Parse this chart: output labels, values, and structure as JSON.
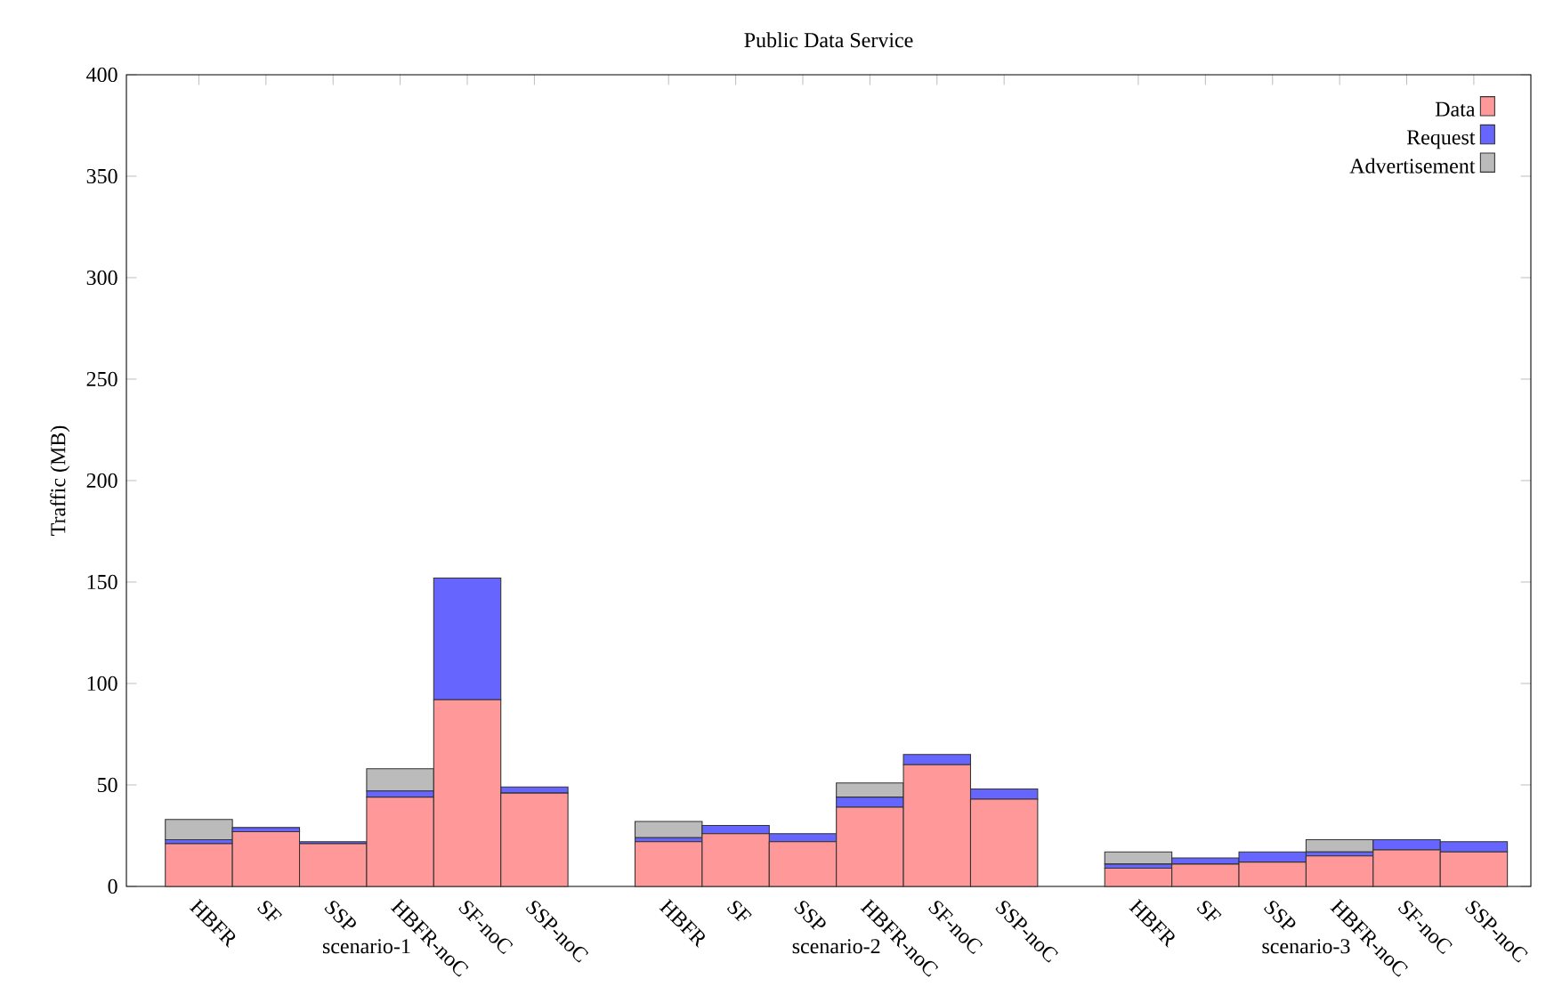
{
  "chart_data": {
    "type": "bar",
    "title": "Public Data Service",
    "ylabel": "Traffic (MB)",
    "categories": [
      "HBFR",
      "SF",
      "SSP",
      "HBFR-noC",
      "SF-noC",
      "SSP-noC",
      null,
      "HBFR",
      "SF",
      "SSP",
      "HBFR-noC",
      "SF-noC",
      "SSP-noC",
      null,
      "HBFR",
      "SF",
      "SSP",
      "HBFR-noC",
      "SF-noC",
      "SSP-noC"
    ],
    "stacked": true,
    "ylim": [
      0,
      400
    ],
    "yticks": [
      0,
      50,
      100,
      150,
      200,
      250,
      300,
      350,
      400
    ],
    "legend": "top right",
    "annotations": [
      "scenario-1",
      "scenario-2",
      "scenario-3"
    ],
    "series": [
      {
        "name": "Data",
        "color": "#ff9999",
        "values": [
          21,
          27,
          21,
          44,
          92,
          46,
          null,
          22,
          26,
          22,
          39,
          60,
          43,
          null,
          9,
          11,
          12,
          15,
          18,
          17
        ]
      },
      {
        "name": "Request",
        "color": "#6666ff",
        "values": [
          2,
          2,
          1,
          3,
          60,
          3,
          null,
          2,
          4,
          4,
          5,
          5,
          5,
          null,
          2,
          3,
          5,
          2,
          5,
          5
        ]
      },
      {
        "name": "Advertisement",
        "color": "#bbbbbb",
        "values": [
          10,
          0,
          0,
          11,
          0,
          0,
          null,
          8,
          0,
          0,
          7,
          0,
          0,
          null,
          6,
          0,
          0,
          6,
          0,
          0
        ]
      }
    ]
  }
}
